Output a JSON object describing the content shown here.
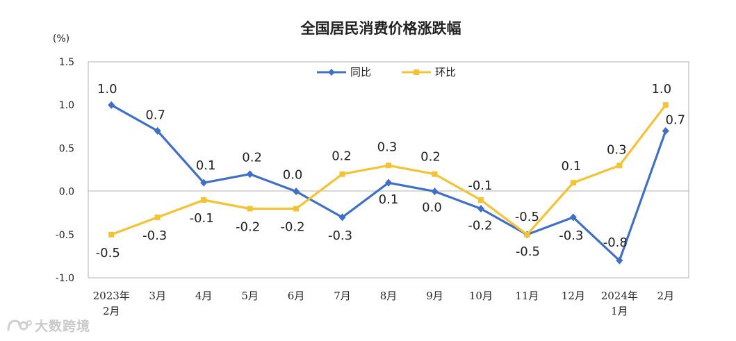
{
  "chart_data": {
    "type": "line",
    "title": "全国居民消费价格涨跌幅",
    "yunit": "(%)",
    "ylim": [
      -1.0,
      1.5
    ],
    "yticks": [
      "1.5",
      "1.0",
      "0.5",
      "0.0",
      "-0.5",
      "-1.0"
    ],
    "ytick_values": [
      1.5,
      1.0,
      0.5,
      0.0,
      -0.5,
      -1.0
    ],
    "categories": [
      [
        "2023年",
        "2月"
      ],
      [
        "3月"
      ],
      [
        "4月"
      ],
      [
        "5月"
      ],
      [
        "6月"
      ],
      [
        "7月"
      ],
      [
        "8月"
      ],
      [
        "9月"
      ],
      [
        "10月"
      ],
      [
        "11月"
      ],
      [
        "12月"
      ],
      [
        "2024年",
        "1月"
      ],
      [
        "2月"
      ]
    ],
    "series": [
      {
        "name": "同比",
        "color": "#3f6fc8",
        "marker": "diamond",
        "values": [
          1.0,
          0.7,
          0.1,
          0.2,
          0.0,
          -0.3,
          0.1,
          0.0,
          -0.2,
          -0.5,
          -0.3,
          -0.8,
          0.7
        ],
        "labels": [
          "1.0",
          "0.7",
          "0.1",
          "0.2",
          "0.0",
          "-0.3",
          "0.1",
          "0.0",
          "-0.2",
          "-0.5",
          "-0.3",
          "-0.8",
          "0.7"
        ]
      },
      {
        "name": "环比",
        "color": "#f5c232",
        "marker": "square",
        "values": [
          -0.5,
          -0.3,
          -0.1,
          -0.2,
          -0.2,
          0.2,
          0.3,
          0.2,
          -0.1,
          -0.5,
          0.1,
          0.3,
          1.0
        ],
        "labels": [
          "-0.5",
          "-0.3",
          "-0.1",
          "-0.2",
          "-0.2",
          "0.2",
          "0.3",
          "0.2",
          "-0.1",
          "-0.5",
          "0.1",
          "0.3",
          "1.0"
        ]
      }
    ],
    "legend_position": "top-center",
    "grid": false,
    "zero_line": true
  },
  "watermark": {
    "text": "大数跨境"
  }
}
